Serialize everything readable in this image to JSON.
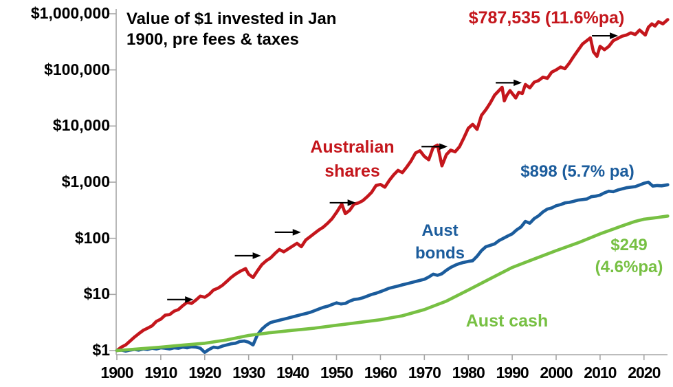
{
  "chart_data": {
    "type": "line",
    "title": "Value of $1 invested in Jan\n1900, pre fees & taxes",
    "y_scale": "log",
    "background_color": "#ffffff",
    "axis_color": "#A6A6A6",
    "text_color": "#000000",
    "x_axis": {
      "tick_years": [
        1900,
        1910,
        1920,
        1930,
        1940,
        1950,
        1960,
        1970,
        1980,
        1990,
        2000,
        2010,
        2020
      ],
      "range": [
        1900,
        2025.5
      ]
    },
    "y_axis": {
      "ticks": [
        {
          "label": "$1",
          "value": 1
        },
        {
          "label": "$10",
          "value": 10
        },
        {
          "label": "$100",
          "value": 100
        },
        {
          "label": "$1,000",
          "value": 1000
        },
        {
          "label": "$10,000",
          "value": 10000
        },
        {
          "label": "$100,000",
          "value": 100000
        },
        {
          "label": "$1,000,000",
          "value": 1000000
        }
      ],
      "range": [
        1,
        1000000
      ]
    },
    "series": [
      {
        "id": "shares",
        "name": "Australian shares",
        "label_lines": "Australian\nshares",
        "end_value_label": "$787,535 (11.6%pa)",
        "end_value": 787535,
        "annual_return_pct": 11.6,
        "color": "#C4161C",
        "points": [
          [
            1900,
            1
          ],
          [
            1901,
            1.15
          ],
          [
            1902,
            1.26
          ],
          [
            1903,
            1.48
          ],
          [
            1904,
            1.74
          ],
          [
            1905,
            2
          ],
          [
            1906,
            2.29
          ],
          [
            1907,
            2.51
          ],
          [
            1908,
            2.75
          ],
          [
            1909,
            3.31
          ],
          [
            1910,
            3.63
          ],
          [
            1911,
            4.27
          ],
          [
            1912,
            4.37
          ],
          [
            1913,
            5.01
          ],
          [
            1914,
            5.37
          ],
          [
            1915,
            6.31
          ],
          [
            1916,
            7.24
          ],
          [
            1917,
            6.92
          ],
          [
            1918,
            7.94
          ],
          [
            1919,
            9.33
          ],
          [
            1920,
            8.91
          ],
          [
            1921,
            10
          ],
          [
            1922,
            12
          ],
          [
            1923,
            12.9
          ],
          [
            1924,
            14.5
          ],
          [
            1925,
            17
          ],
          [
            1926,
            20
          ],
          [
            1927,
            22.9
          ],
          [
            1928,
            25.7
          ],
          [
            1929.3,
            28.8
          ],
          [
            1930,
            22.9
          ],
          [
            1931,
            20
          ],
          [
            1932,
            26.3
          ],
          [
            1933,
            33.9
          ],
          [
            1934,
            39.8
          ],
          [
            1935,
            44.7
          ],
          [
            1936,
            53.7
          ],
          [
            1937,
            63.1
          ],
          [
            1938,
            57.5
          ],
          [
            1939,
            64.6
          ],
          [
            1940,
            72.4
          ],
          [
            1941,
            81.3
          ],
          [
            1942,
            70.8
          ],
          [
            1943,
            93.3
          ],
          [
            1944,
            107
          ],
          [
            1945,
            123
          ],
          [
            1946,
            141
          ],
          [
            1947,
            158
          ],
          [
            1948,
            186
          ],
          [
            1949,
            224
          ],
          [
            1950,
            288
          ],
          [
            1951.2,
            407
          ],
          [
            1952,
            275
          ],
          [
            1953,
            316
          ],
          [
            1954,
            407
          ],
          [
            1955,
            427
          ],
          [
            1956,
            468
          ],
          [
            1957,
            550
          ],
          [
            1958,
            661
          ],
          [
            1959,
            871
          ],
          [
            1960,
            912
          ],
          [
            1961,
            813
          ],
          [
            1962,
            1070
          ],
          [
            1963,
            1350
          ],
          [
            1964,
            1620
          ],
          [
            1965,
            1480
          ],
          [
            1966,
            1860
          ],
          [
            1967,
            2400
          ],
          [
            1968,
            3310
          ],
          [
            1969,
            3630
          ],
          [
            1970,
            2880
          ],
          [
            1971,
            2510
          ],
          [
            1972,
            4170
          ],
          [
            1973,
            4570
          ],
          [
            1974,
            1950
          ],
          [
            1975,
            3090
          ],
          [
            1976,
            3720
          ],
          [
            1977,
            3470
          ],
          [
            1978,
            4270
          ],
          [
            1979,
            6170
          ],
          [
            1980,
            9120
          ],
          [
            1981,
            10700
          ],
          [
            1982,
            8710
          ],
          [
            1983,
            15500
          ],
          [
            1984,
            19500
          ],
          [
            1985,
            25700
          ],
          [
            1986,
            35500
          ],
          [
            1987.7,
            49000
          ],
          [
            1988.2,
            28200
          ],
          [
            1988.8,
            35500
          ],
          [
            1989.5,
            42700
          ],
          [
            1990.8,
            31600
          ],
          [
            1991.5,
            39800
          ],
          [
            1992.3,
            38000
          ],
          [
            1993,
            55000
          ],
          [
            1994,
            47900
          ],
          [
            1995,
            60300
          ],
          [
            1996,
            64600
          ],
          [
            1997,
            74100
          ],
          [
            1998,
            70800
          ],
          [
            1999,
            91200
          ],
          [
            2000,
            100000
          ],
          [
            2001,
            112000
          ],
          [
            2002,
            105000
          ],
          [
            2003,
            132000
          ],
          [
            2004,
            174000
          ],
          [
            2005,
            224000
          ],
          [
            2006,
            288000
          ],
          [
            2007.8,
            372000
          ],
          [
            2008.5,
            209000
          ],
          [
            2009.3,
            174000
          ],
          [
            2010,
            263000
          ],
          [
            2011,
            229000
          ],
          [
            2012,
            263000
          ],
          [
            2013,
            331000
          ],
          [
            2014,
            363000
          ],
          [
            2015,
            398000
          ],
          [
            2016,
            417000
          ],
          [
            2017,
            457000
          ],
          [
            2018,
            427000
          ],
          [
            2019,
            513000
          ],
          [
            2020.3,
            417000
          ],
          [
            2021,
            575000
          ],
          [
            2021.8,
            661000
          ],
          [
            2022.5,
            603000
          ],
          [
            2023.3,
            724000
          ],
          [
            2024.3,
            661000
          ],
          [
            2025.4,
            787535
          ]
        ]
      },
      {
        "id": "bonds",
        "name": "Aust bonds",
        "label_lines": "Aust\nbonds",
        "end_value_label": "$898 (5.7% pa)",
        "end_value": 898,
        "annual_return_pct": 5.7,
        "color": "#1B5C9C",
        "points": [
          [
            1900,
            1
          ],
          [
            1901,
            1.02
          ],
          [
            1902,
            0.98
          ],
          [
            1903,
            1.02
          ],
          [
            1904,
            1.05
          ],
          [
            1905,
            1.02
          ],
          [
            1906,
            1.07
          ],
          [
            1907,
            1.05
          ],
          [
            1908,
            1.1
          ],
          [
            1909,
            1.07
          ],
          [
            1910,
            1.12
          ],
          [
            1911,
            1.1
          ],
          [
            1912,
            1.07
          ],
          [
            1913,
            1.12
          ],
          [
            1914,
            1.1
          ],
          [
            1915,
            1.15
          ],
          [
            1916,
            1.12
          ],
          [
            1917,
            1.17
          ],
          [
            1918,
            1.15
          ],
          [
            1919,
            1.1
          ],
          [
            1920,
            0.93
          ],
          [
            1921,
            1.05
          ],
          [
            1922,
            1.15
          ],
          [
            1923,
            1.12
          ],
          [
            1924,
            1.2
          ],
          [
            1925,
            1.26
          ],
          [
            1926,
            1.32
          ],
          [
            1927,
            1.35
          ],
          [
            1928,
            1.45
          ],
          [
            1929,
            1.48
          ],
          [
            1930,
            1.41
          ],
          [
            1931,
            1.26
          ],
          [
            1932,
            1.91
          ],
          [
            1933,
            2.4
          ],
          [
            1934,
            2.82
          ],
          [
            1935,
            3.16
          ],
          [
            1936,
            3.31
          ],
          [
            1937,
            3.47
          ],
          [
            1938,
            3.63
          ],
          [
            1939,
            3.8
          ],
          [
            1940,
            3.98
          ],
          [
            1941,
            4.17
          ],
          [
            1942,
            4.37
          ],
          [
            1943,
            4.57
          ],
          [
            1944,
            4.79
          ],
          [
            1945,
            5.13
          ],
          [
            1946,
            5.5
          ],
          [
            1947,
            5.89
          ],
          [
            1948,
            6.17
          ],
          [
            1949,
            6.61
          ],
          [
            1950,
            7.08
          ],
          [
            1951,
            6.76
          ],
          [
            1952,
            6.92
          ],
          [
            1953,
            7.59
          ],
          [
            1954,
            8.13
          ],
          [
            1955,
            8.32
          ],
          [
            1956,
            8.71
          ],
          [
            1957,
            9.33
          ],
          [
            1958,
            10
          ],
          [
            1959,
            10.5
          ],
          [
            1960,
            11.2
          ],
          [
            1961,
            12
          ],
          [
            1962,
            12.9
          ],
          [
            1963,
            13.5
          ],
          [
            1964,
            14.1
          ],
          [
            1965,
            14.8
          ],
          [
            1966,
            15.5
          ],
          [
            1967,
            16.2
          ],
          [
            1968,
            17
          ],
          [
            1969,
            17.8
          ],
          [
            1970,
            18.6
          ],
          [
            1971,
            20.4
          ],
          [
            1972,
            22.9
          ],
          [
            1973,
            21.9
          ],
          [
            1974,
            23.4
          ],
          [
            1975,
            26.9
          ],
          [
            1976,
            30.2
          ],
          [
            1977,
            33.1
          ],
          [
            1978,
            35.5
          ],
          [
            1979,
            37.2
          ],
          [
            1980,
            38.9
          ],
          [
            1981,
            39.8
          ],
          [
            1982,
            47.9
          ],
          [
            1983,
            60.3
          ],
          [
            1984,
            70.8
          ],
          [
            1985,
            75
          ],
          [
            1986,
            79.4
          ],
          [
            1987,
            91
          ],
          [
            1988,
            100
          ],
          [
            1989,
            110
          ],
          [
            1990,
            120
          ],
          [
            1991,
            141
          ],
          [
            1992,
            159
          ],
          [
            1993,
            200
          ],
          [
            1994,
            186
          ],
          [
            1995,
            224
          ],
          [
            1996,
            251
          ],
          [
            1997,
            295
          ],
          [
            1998,
            331
          ],
          [
            1999,
            347
          ],
          [
            2000,
            380
          ],
          [
            2001,
            398
          ],
          [
            2002,
            427
          ],
          [
            2003,
            437
          ],
          [
            2004,
            457
          ],
          [
            2005,
            479
          ],
          [
            2006,
            490
          ],
          [
            2007,
            501
          ],
          [
            2008,
            550
          ],
          [
            2009,
            562
          ],
          [
            2010,
            589
          ],
          [
            2011,
            646
          ],
          [
            2012,
            692
          ],
          [
            2013,
            676
          ],
          [
            2014,
            724
          ],
          [
            2015,
            759
          ],
          [
            2016,
            794
          ],
          [
            2017,
            813
          ],
          [
            2018,
            832
          ],
          [
            2019,
            891
          ],
          [
            2020,
            955
          ],
          [
            2021,
            1000
          ],
          [
            2022,
            851
          ],
          [
            2023,
            871
          ],
          [
            2024,
            861
          ],
          [
            2025.4,
            898
          ]
        ]
      },
      {
        "id": "cash",
        "name": "Aust cash",
        "label_lines": "Aust cash",
        "end_value_label": "$249\n(4.6%pa)",
        "end_value": 249,
        "annual_return_pct": 4.6,
        "color": "#77C043",
        "points": [
          [
            1900,
            1
          ],
          [
            1905,
            1.07
          ],
          [
            1910,
            1.15
          ],
          [
            1915,
            1.25
          ],
          [
            1920,
            1.35
          ],
          [
            1925,
            1.55
          ],
          [
            1930,
            1.86
          ],
          [
            1935,
            2.09
          ],
          [
            1940,
            2.29
          ],
          [
            1945,
            2.51
          ],
          [
            1950,
            2.82
          ],
          [
            1955,
            3.16
          ],
          [
            1960,
            3.55
          ],
          [
            1965,
            4.17
          ],
          [
            1970,
            5.37
          ],
          [
            1975,
            7.59
          ],
          [
            1980,
            12
          ],
          [
            1985,
            19.1
          ],
          [
            1990,
            30.2
          ],
          [
            1995,
            42.7
          ],
          [
            2000,
            60.3
          ],
          [
            2005,
            83.2
          ],
          [
            2010,
            120
          ],
          [
            2015,
            166
          ],
          [
            2018,
            200
          ],
          [
            2020,
            219
          ],
          [
            2022,
            229
          ],
          [
            2025.4,
            249
          ]
        ]
      }
    ],
    "arrows": [
      {
        "year": 1917.4,
        "value": 8.1
      },
      {
        "year": 1932.8,
        "value": 49
      },
      {
        "year": 1941.9,
        "value": 128
      },
      {
        "year": 1954.4,
        "value": 430
      },
      {
        "year": 1975.3,
        "value": 4300
      },
      {
        "year": 1992.2,
        "value": 59000
      },
      {
        "year": 2014.1,
        "value": 405000
      }
    ]
  }
}
